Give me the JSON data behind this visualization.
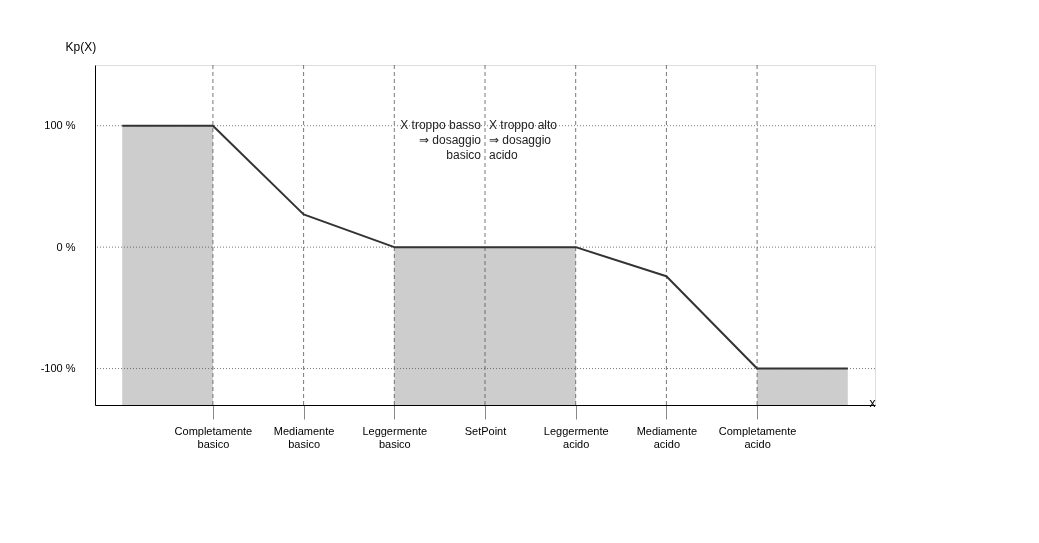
{
  "chart_data": {
    "type": "line",
    "xlabel": "x",
    "ylabel": "Kp(X)",
    "categories": [
      null,
      "Completamente basico",
      "Mediamente basico",
      "Leggermente basico",
      "SetPoint",
      "Leggermente acido",
      "Mediamente acido",
      "Completamente acido",
      null
    ],
    "series": [
      {
        "color": "#333333",
        "values": [
          100,
          100,
          27,
          0,
          0,
          0,
          -24,
          -100,
          -100
        ]
      }
    ],
    "ylim": [
      -130,
      150
    ],
    "yticks": [
      {
        "value": 100,
        "label": "100 %"
      },
      {
        "value": 0,
        "label": "0 %"
      },
      {
        "value": -100,
        "label": "-100 %"
      }
    ],
    "ref_lines": [
      {
        "axis": "y",
        "value": 100,
        "line_style": "dotted"
      },
      {
        "axis": "y",
        "value": 0,
        "line_style": "dotted"
      },
      {
        "axis": "y",
        "value": -100,
        "line_style": "dotted"
      },
      {
        "axis": "x",
        "value": "Completamente basico",
        "line_style": "dashed"
      },
      {
        "axis": "x",
        "value": "Mediamente basico",
        "line_style": "dashed"
      },
      {
        "axis": "x",
        "value": "Leggermente basico",
        "line_style": "dashed"
      },
      {
        "axis": "x",
        "value": "SetPoint",
        "line_style": "dashed"
      },
      {
        "axis": "x",
        "value": "Leggermente acido",
        "line_style": "dashed"
      },
      {
        "axis": "x",
        "value": "Mediamente acido",
        "line_style": "dashed"
      },
      {
        "axis": "x",
        "value": "Completamente acido",
        "line_style": "dashed"
      }
    ],
    "bands": [
      {
        "axis": "x",
        "from": "Leggermente basico",
        "to": "Leggermente acido",
        "color": "#c8c8c8"
      }
    ],
    "annotations": [
      "X troppo basso\n⇒ dosaggio\nbasico",
      "X troppo alto\n⇒ dosaggio\nacido"
    ],
    "grid": false,
    "marker": "none",
    "line_style": "solid"
  }
}
